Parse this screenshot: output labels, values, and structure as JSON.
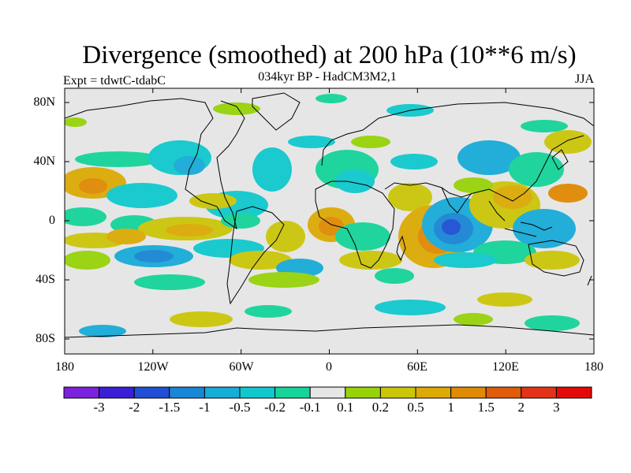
{
  "title": "Divergence (smoothed) at 200 hPa (10**6 m/s)",
  "subtitle": "034kyr BP - HadCM3M2,1",
  "experiment": "Expt = tdwtC-tdabC",
  "season": "JJA",
  "lat_ticks": [
    "80N",
    "40N",
    "0",
    "40S",
    "80S"
  ],
  "lon_ticks": [
    "180",
    "120W",
    "60W",
    "0",
    "60E",
    "120E",
    "180"
  ],
  "colorbar": {
    "labels": [
      "-3",
      "-2",
      "-1.5",
      "-1",
      "-0.5",
      "-0.2",
      "-0.1",
      "0.1",
      "0.2",
      "0.5",
      "1",
      "1.5",
      "2",
      "3"
    ],
    "colors": [
      "#7b22dc",
      "#3a1fd6",
      "#1f4fd3",
      "#1a86d6",
      "#18acd8",
      "#10c9cd",
      "#16d49a",
      "#e6e6e6",
      "#98d20a",
      "#cbc60a",
      "#dcaa06",
      "#e08a05",
      "#df5c0a",
      "#e23318",
      "#e50a0a"
    ]
  }
}
